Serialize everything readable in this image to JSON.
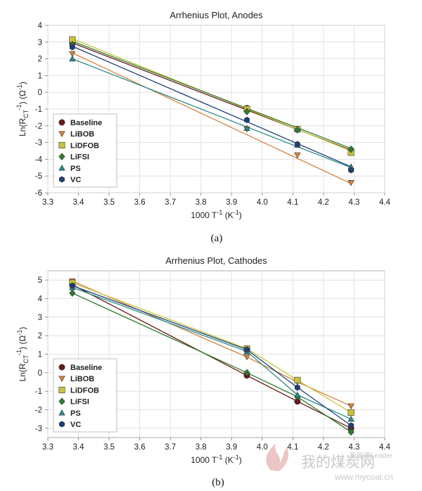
{
  "figure_captions": [
    "(a)",
    "(b)"
  ],
  "watermark": {
    "cn_text": "我的煤炭网",
    "url_text": "www.mycoal.cn",
    "tag_text": "新能源Leader"
  },
  "colors": {
    "Baseline": "#6b1a1a",
    "LiBOB": "#d4823a",
    "LiDFOB": "#c8c43a",
    "LiFSI": "#2e7d2e",
    "PS": "#2b8b8b",
    "VC": "#1f3f7a"
  },
  "chart_data": [
    {
      "type": "scatter",
      "title": "Arrhenius Plot, Anodes",
      "xlabel_main": "1000 T",
      "xlabel_sup": "-1",
      "xlabel_unit_pre": " (K",
      "xlabel_unit_sup": "-1",
      "xlabel_unit_post": ")",
      "ylabel": "Ln(R_CT^-1) (Ω^-1)",
      "xlim": [
        3.3,
        4.4
      ],
      "ylim": [
        -6,
        4
      ],
      "xticks": [
        "3.3",
        "3.4",
        "3.5",
        "3.6",
        "3.7",
        "3.8",
        "3.9",
        "4.0",
        "4.1",
        "4.2",
        "4.3",
        "4.4"
      ],
      "yticks": [
        "4",
        "3",
        "2",
        "1",
        "0",
        "-1",
        "-2",
        "-3",
        "-4",
        "-5",
        "-6"
      ],
      "grid": true,
      "legend_position": "bottom-left",
      "x": [
        3.38,
        3.95,
        4.115,
        4.29
      ],
      "series": [
        {
          "name": "Baseline",
          "marker": "circle",
          "values": [
            2.9,
            -0.95,
            -2.2,
            -3.45
          ],
          "fit": [
            [
              3.38,
              2.95
            ],
            [
              4.29,
              -3.45
            ]
          ]
        },
        {
          "name": "LiBOB",
          "marker": "triangle-down",
          "values": [
            2.3,
            -2.2,
            -3.75,
            -5.4
          ],
          "fit": [
            [
              3.38,
              2.35
            ],
            [
              4.29,
              -5.45
            ]
          ]
        },
        {
          "name": "LiDFOB",
          "marker": "square",
          "values": [
            3.15,
            -1.0,
            -2.2,
            -3.6
          ],
          "fit": [
            [
              3.38,
              3.2
            ],
            [
              4.29,
              -3.5
            ]
          ]
        },
        {
          "name": "LiFSI",
          "marker": "diamond",
          "values": [
            2.85,
            -1.15,
            -2.25,
            -3.4
          ],
          "fit": [
            [
              3.38,
              3.05
            ],
            [
              4.29,
              -3.35
            ]
          ]
        },
        {
          "name": "PS",
          "marker": "triangle-up",
          "values": [
            2.0,
            -2.15,
            -3.15,
            -4.45
          ],
          "fit": [
            [
              3.38,
              2.0
            ],
            [
              4.29,
              -4.5
            ]
          ]
        },
        {
          "name": "VC",
          "marker": "hexagon",
          "values": [
            2.7,
            -1.65,
            -3.1,
            -4.65
          ],
          "fit": [
            [
              3.38,
              2.75
            ],
            [
              4.29,
              -4.45
            ]
          ]
        }
      ]
    },
    {
      "type": "line",
      "title": "Arrhenius Plot, Cathodes",
      "xlabel_main": "1000 T",
      "xlabel_sup": "-1",
      "xlabel_unit_pre": " (K",
      "xlabel_unit_sup": "-1",
      "xlabel_unit_post": ")",
      "ylabel": "Ln(R_CT^-1) (Ω^-1)",
      "xlim": [
        3.3,
        4.4
      ],
      "ylim": [
        -3.5,
        5.5
      ],
      "xticks": [
        "3.3",
        "3.4",
        "3.5",
        "3.6",
        "3.7",
        "3.8",
        "3.9",
        "4.0",
        "4.1",
        "4.2",
        "4.3",
        "4.4"
      ],
      "yticks": [
        "5",
        "4",
        "3",
        "2",
        "1",
        "0",
        "-1",
        "-2",
        "-3"
      ],
      "grid": true,
      "legend_position": "bottom-left",
      "x": [
        3.38,
        3.95,
        4.115,
        4.29
      ],
      "series": [
        {
          "name": "Baseline",
          "marker": "circle",
          "values": [
            4.75,
            -0.15,
            -1.55,
            -3.0
          ]
        },
        {
          "name": "LiBOB",
          "marker": "triangle-down",
          "values": [
            4.95,
            0.85,
            -0.5,
            -1.8
          ]
        },
        {
          "name": "LiDFOB",
          "marker": "square",
          "values": [
            4.85,
            1.3,
            -0.4,
            -2.15
          ]
        },
        {
          "name": "LiFSI",
          "marker": "diamond",
          "values": [
            4.3,
            0.0,
            -1.3,
            -3.2
          ]
        },
        {
          "name": "PS",
          "marker": "triangle-up",
          "values": [
            4.6,
            1.15,
            -1.2,
            -2.5
          ]
        },
        {
          "name": "VC",
          "marker": "hexagon",
          "values": [
            4.7,
            1.25,
            -0.8,
            -2.85
          ]
        }
      ]
    }
  ]
}
